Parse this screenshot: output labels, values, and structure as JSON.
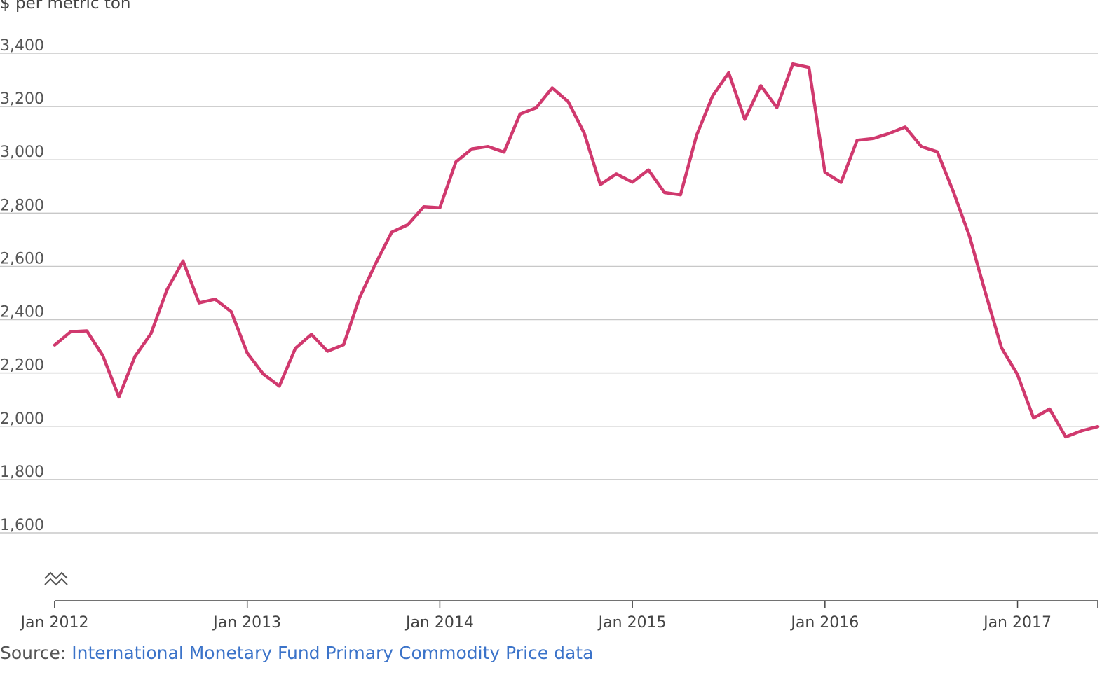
{
  "chart_data": {
    "type": "line",
    "ylabel": "$ per metric ton",
    "ylim": [
      1400,
      3450
    ],
    "yticks": [
      1600,
      1800,
      2000,
      2200,
      2400,
      2600,
      2800,
      3000,
      3200,
      3400
    ],
    "ytick_labels": [
      "1,600",
      "1,800",
      "2,000",
      "2,200",
      "2,400",
      "2,600",
      "2,800",
      "3,000",
      "3,200",
      "3,400"
    ],
    "x_start": "Jan 2012",
    "x_end": "Jun 2017",
    "xtick_labels": [
      "Jan 2012",
      "Jan 2013",
      "Jan 2014",
      "Jan 2015",
      "Jan 2016",
      "Jan 2017"
    ],
    "axis_break": true,
    "grid": true,
    "line_color": "#d0396e",
    "series": [
      {
        "x": [
          "2012-01",
          "2012-02",
          "2012-03",
          "2012-04",
          "2012-05",
          "2012-06",
          "2012-07",
          "2012-08",
          "2012-09",
          "2012-10",
          "2012-11",
          "2012-12",
          "2013-01",
          "2013-02",
          "2013-03",
          "2013-04",
          "2013-05",
          "2013-06",
          "2013-07",
          "2013-08",
          "2013-09",
          "2013-10",
          "2013-11",
          "2013-12",
          "2014-01",
          "2014-02",
          "2014-03",
          "2014-04",
          "2014-05",
          "2014-06",
          "2014-07",
          "2014-08",
          "2014-09",
          "2014-10",
          "2014-11",
          "2014-12",
          "2015-01",
          "2015-02",
          "2015-03",
          "2015-04",
          "2015-05",
          "2015-06",
          "2015-07",
          "2015-08",
          "2015-09",
          "2015-10",
          "2015-11",
          "2015-12",
          "2016-01",
          "2016-02",
          "2016-03",
          "2016-04",
          "2016-05",
          "2016-06",
          "2016-07",
          "2016-08",
          "2016-09",
          "2016-10",
          "2016-11",
          "2016-12",
          "2017-01",
          "2017-02",
          "2017-03",
          "2017-04",
          "2017-05",
          "2017-06"
        ],
        "values": [
          2305,
          2355,
          2358,
          2265,
          2110,
          2262,
          2348,
          2512,
          2620,
          2463,
          2477,
          2430,
          2275,
          2196,
          2151,
          2293,
          2345,
          2282,
          2306,
          2483,
          2610,
          2728,
          2756,
          2824,
          2820,
          2992,
          3041,
          3050,
          3029,
          3172,
          3195,
          3270,
          3218,
          3100,
          2907,
          2947,
          2916,
          2962,
          2877,
          2869,
          3092,
          3240,
          3327,
          3152,
          3278,
          3196,
          3360,
          3347,
          2953,
          2915,
          3073,
          3080,
          3099,
          3123,
          3050,
          3030,
          2880,
          2714,
          2500,
          2295,
          2194,
          2031,
          2065,
          1960,
          1983,
          1999
        ]
      }
    ]
  },
  "source": {
    "prefix": "Source: ",
    "link_text": "International Monetary Fund Primary Commodity Price data"
  }
}
